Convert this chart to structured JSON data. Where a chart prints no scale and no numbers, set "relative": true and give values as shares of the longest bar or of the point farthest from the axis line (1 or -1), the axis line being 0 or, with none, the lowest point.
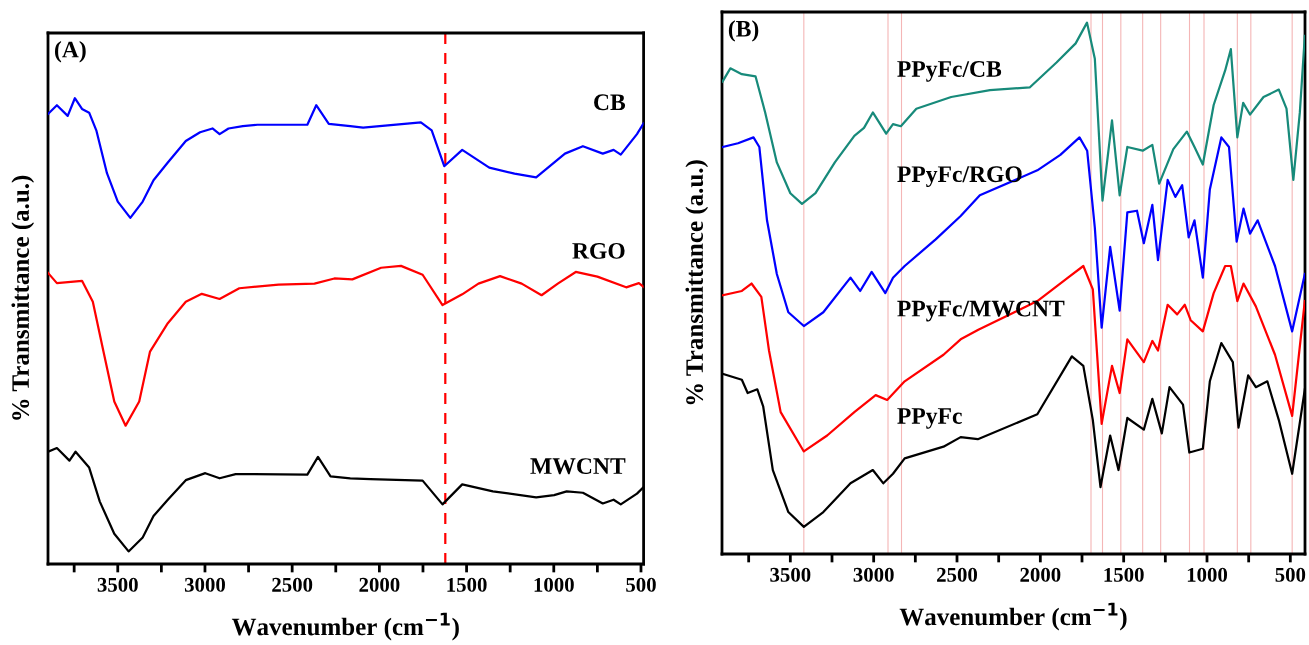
{
  "chart_data": [
    {
      "type": "line",
      "title": "(A)",
      "xlabel": "Wavenumber (cm$^{−1}$)",
      "ylabel": "% Transmittance (a.u.)",
      "relative": true,
      "xlim": [
        3900,
        485
      ],
      "xticks": [
        {
          "value": 3750,
          "label": null
        },
        3500,
        {
          "value": 3250,
          "label": null
        },
        3000,
        {
          "value": 2750,
          "label": null
        },
        2500,
        {
          "value": 2250,
          "label": null
        },
        2000,
        {
          "value": 1750,
          "label": null
        },
        1500,
        {
          "value": 1250,
          "label": null
        },
        1000,
        {
          "value": 750,
          "label": null
        },
        500
      ],
      "ref_lines": [
        {
          "axis": "x",
          "value": 1622,
          "color": "#ff0000",
          "line_style": "dashed"
        }
      ],
      "series": [
        {
          "name": "CB",
          "color": "#0000ff",
          "x": [
            3900,
            3849,
            3787,
            3746,
            3705,
            3664,
            3623,
            3562,
            3500,
            3428,
            3357,
            3295,
            3213,
            3110,
            3028,
            2957,
            2916,
            2865,
            2783,
            2700,
            2413,
            2362,
            2290,
            2167,
            2093,
            1762,
            1700,
            1628,
            1525,
            1370,
            1225,
            1101,
            936,
            833,
            719,
            657,
            616,
            523,
            485
          ],
          "values": [
            0.966,
            0.985,
            0.962,
            1,
            0.977,
            0.969,
            0.931,
            0.839,
            0.778,
            0.743,
            0.778,
            0.824,
            0.862,
            0.908,
            0.927,
            0.935,
            0.923,
            0.935,
            0.94,
            0.943,
            0.943,
            0.985,
            0.945,
            0.94,
            0.937,
            0.948,
            0.931,
            0.854,
            0.889,
            0.851,
            0.838,
            0.83,
            0.881,
            0.897,
            0.881,
            0.889,
            0.879,
            0.923,
            0.946
          ]
        },
        {
          "name": "RGO",
          "color": "#ff0000",
          "x": [
            3900,
            3849,
            3705,
            3643,
            3582,
            3520,
            3455,
            3377,
            3315,
            3213,
            3110,
            3018,
            2916,
            2803,
            2578,
            2372,
            2258,
            2155,
            1990,
            1876,
            1752,
            1638,
            1525,
            1432,
            1308,
            1184,
            1070,
            977,
            874,
            750,
            585,
            512,
            485
          ],
          "values": [
            0.625,
            0.603,
            0.608,
            0.563,
            0.456,
            0.349,
            0.297,
            0.349,
            0.456,
            0.517,
            0.563,
            0.58,
            0.569,
            0.592,
            0.6,
            0.602,
            0.613,
            0.611,
            0.636,
            0.64,
            0.621,
            0.556,
            0.579,
            0.602,
            0.618,
            0.602,
            0.577,
            0.602,
            0.627,
            0.617,
            0.594,
            0.603,
            0.595
          ]
        },
        {
          "name": "MWCNT",
          "color": "#000000",
          "x": [
            3900,
            3849,
            3777,
            3742,
            3664,
            3603,
            3520,
            3438,
            3357,
            3295,
            3213,
            3110,
            2998,
            2916,
            2824,
            2413,
            2352,
            2280,
            2167,
            2052,
            1752,
            1638,
            1525,
            1349,
            1101,
            998,
            926,
            833,
            719,
            657,
            616,
            523,
            485
          ],
          "values": [
            0.241,
            0.249,
            0.222,
            0.241,
            0.207,
            0.134,
            0.065,
            0.027,
            0.057,
            0.103,
            0.138,
            0.18,
            0.195,
            0.184,
            0.193,
            0.192,
            0.23,
            0.188,
            0.184,
            0.182,
            0.179,
            0.128,
            0.171,
            0.156,
            0.143,
            0.148,
            0.156,
            0.153,
            0.13,
            0.138,
            0.128,
            0.151,
            0.165
          ]
        }
      ]
    },
    {
      "type": "line",
      "title": "(B)",
      "xlabel": "Wavenumber (cm$^{−1}$)",
      "ylabel": "% Transmittance (a.u.)",
      "relative": true,
      "xlim": [
        3910,
        412
      ],
      "xticks": [
        {
          "value": 3750,
          "label": null
        },
        3500,
        {
          "value": 3250,
          "label": null
        },
        3000,
        {
          "value": 2750,
          "label": null
        },
        2500,
        {
          "value": 2250,
          "label": null
        },
        2000,
        {
          "value": 1750,
          "label": null
        },
        1500,
        {
          "value": 1250,
          "label": null
        },
        1000,
        {
          "value": 750,
          "label": null
        },
        500
      ],
      "ref_lines": [
        {
          "axis": "x",
          "value": 3419,
          "color": "#f4b6b6",
          "line_style": "solid"
        },
        {
          "axis": "x",
          "value": 2914,
          "color": "#f4b6b6",
          "line_style": "solid"
        },
        {
          "axis": "x",
          "value": 2833,
          "color": "#f4b6b6",
          "line_style": "solid"
        },
        {
          "axis": "x",
          "value": 1696,
          "color": "#f4b6b6",
          "line_style": "solid"
        },
        {
          "axis": "x",
          "value": 1627,
          "color": "#f4b6b6",
          "line_style": "solid"
        },
        {
          "axis": "x",
          "value": 1517,
          "color": "#f4b6b6",
          "line_style": "solid"
        },
        {
          "axis": "x",
          "value": 1386,
          "color": "#f4b6b6",
          "line_style": "solid"
        },
        {
          "axis": "x",
          "value": 1278,
          "color": "#f4b6b6",
          "line_style": "solid"
        },
        {
          "axis": "x",
          "value": 1105,
          "color": "#f4b6b6",
          "line_style": "solid"
        },
        {
          "axis": "x",
          "value": 1018,
          "color": "#f4b6b6",
          "line_style": "solid"
        },
        {
          "axis": "x",
          "value": 818,
          "color": "#f4b6b6",
          "line_style": "solid"
        },
        {
          "axis": "x",
          "value": 737,
          "color": "#f4b6b6",
          "line_style": "solid"
        },
        {
          "axis": "x",
          "value": 489,
          "color": "#f4b6b6",
          "line_style": "solid"
        }
      ],
      "series": [
        {
          "name": "PPyFc/CB",
          "color": "#178a7a",
          "x": [
            3907,
            3860,
            3791,
            3709,
            3651,
            3581,
            3500,
            3430,
            3349,
            3233,
            3116,
            3058,
            3005,
            2925,
            2884,
            2837,
            2744,
            2535,
            2302,
            2064,
            1903,
            1788,
            1720,
            1673,
            1627,
            1570,
            1524,
            1478,
            1386,
            1328,
            1287,
            1202,
            1121,
            1075,
            1025,
            960,
            891,
            857,
            818,
            783,
            742,
            661,
            569,
            523,
            482,
            443,
            413
          ],
          "values": [
            0.889,
            0.914,
            0.903,
            0.899,
            0.831,
            0.737,
            0.679,
            0.659,
            0.679,
            0.737,
            0.787,
            0.802,
            0.831,
            0.791,
            0.809,
            0.805,
            0.838,
            0.86,
            0.873,
            0.878,
            0.925,
            0.961,
            1,
            0.932,
            0.665,
            0.816,
            0.675,
            0.766,
            0.759,
            0.77,
            0.697,
            0.762,
            0.795,
            0.766,
            0.733,
            0.845,
            0.91,
            0.95,
            0.784,
            0.849,
            0.827,
            0.86,
            0.874,
            0.838,
            0.704,
            0.831,
            0.975
          ]
        },
        {
          "name": "PPyFc/RGO",
          "color": "#0000ff",
          "x": [
            3907,
            3814,
            3721,
            3686,
            3640,
            3581,
            3512,
            3419,
            3302,
            3139,
            3081,
            3012,
            2930,
            2884,
            2814,
            2628,
            2478,
            2363,
            2018,
            1880,
            1765,
            1719,
            1673,
            1632,
            1581,
            1524,
            1478,
            1420,
            1379,
            1328,
            1294,
            1236,
            1190,
            1149,
            1110,
            1075,
            1025,
            983,
            914,
            868,
            822,
            781,
            742,
            696,
            592,
            489,
            413
          ],
          "values": [
            0.766,
            0.773,
            0.784,
            0.766,
            0.628,
            0.527,
            0.455,
            0.429,
            0.455,
            0.52,
            0.495,
            0.531,
            0.491,
            0.52,
            0.542,
            0.592,
            0.636,
            0.675,
            0.722,
            0.751,
            0.784,
            0.759,
            0.614,
            0.426,
            0.578,
            0.458,
            0.643,
            0.646,
            0.585,
            0.657,
            0.553,
            0.704,
            0.672,
            0.694,
            0.596,
            0.628,
            0.52,
            0.686,
            0.784,
            0.766,
            0.588,
            0.65,
            0.603,
            0.628,
            0.542,
            0.419,
            0.527
          ]
        },
        {
          "name": "PPyFc/MWCNT",
          "color": "#ff0000",
          "x": [
            3907,
            3791,
            3733,
            3674,
            3628,
            3558,
            3419,
            3279,
            3116,
            2988,
            2919,
            2814,
            2581,
            2478,
            2372,
            2018,
            1834,
            1742,
            1685,
            1632,
            1570,
            1524,
            1478,
            1379,
            1328,
            1294,
            1236,
            1179,
            1133,
            1098,
            1025,
            960,
            891,
            857,
            818,
            781,
            707,
            592,
            489,
            413
          ],
          "values": [
            0.487,
            0.495,
            0.509,
            0.484,
            0.383,
            0.267,
            0.193,
            0.223,
            0.267,
            0.299,
            0.29,
            0.325,
            0.375,
            0.404,
            0.422,
            0.476,
            0.52,
            0.542,
            0.498,
            0.245,
            0.354,
            0.303,
            0.404,
            0.361,
            0.401,
            0.383,
            0.469,
            0.451,
            0.469,
            0.44,
            0.419,
            0.491,
            0.542,
            0.542,
            0.476,
            0.509,
            0.466,
            0.375,
            0.26,
            0.476
          ]
        },
        {
          "name": "PPyFc",
          "color": "#000000",
          "x": [
            3907,
            3791,
            3756,
            3698,
            3663,
            3605,
            3512,
            3419,
            3302,
            3139,
            3005,
            2942,
            2884,
            2814,
            2581,
            2478,
            2375,
            2018,
            1811,
            1742,
            1685,
            1639,
            1581,
            1531,
            1478,
            1379,
            1328,
            1271,
            1225,
            1144,
            1106,
            1025,
            983,
            914,
            845,
            811,
            753,
            707,
            638,
            569,
            489,
            413
          ],
          "values": [
            0.339,
            0.328,
            0.303,
            0.31,
            0.278,
            0.158,
            0.079,
            0.051,
            0.079,
            0.133,
            0.158,
            0.133,
            0.151,
            0.18,
            0.202,
            0.22,
            0.216,
            0.263,
            0.372,
            0.354,
            0.252,
            0.126,
            0.223,
            0.158,
            0.256,
            0.234,
            0.292,
            0.227,
            0.314,
            0.281,
            0.191,
            0.198,
            0.325,
            0.397,
            0.361,
            0.238,
            0.336,
            0.314,
            0.325,
            0.252,
            0.151,
            0.31
          ]
        }
      ]
    }
  ]
}
